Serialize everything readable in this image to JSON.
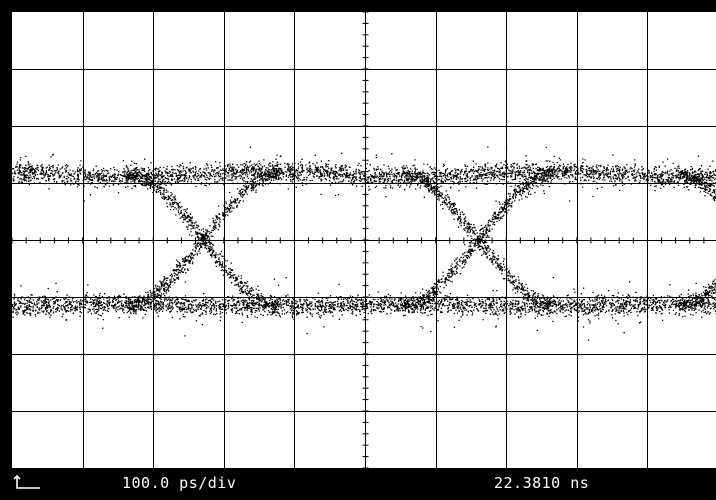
{
  "status_bar": {
    "timebase": "100.0 ps/div",
    "position": "22.3810 ns",
    "marker_icon": "ground-reference-marker-icon"
  },
  "colors": {
    "bezel": "#000000",
    "screen": "#ffffff",
    "trace": "#000000",
    "grid": "#000000"
  },
  "chart_data": {
    "type": "eye-diagram",
    "title": "",
    "xlabel": "",
    "ylabel": "",
    "grid": "on",
    "divisions": {
      "x": 10,
      "y": 8
    },
    "x_unit_per_div": "100.0 ps",
    "xlim_div": [
      0,
      10
    ],
    "ylim_div": [
      0,
      8
    ],
    "levels_div": {
      "high": 5.15,
      "low": 2.85,
      "band_thickness": 0.45
    },
    "crossings_div": [
      {
        "x": 2.7,
        "y": 3.7
      },
      {
        "x": 6.6,
        "y": 3.7
      }
    ],
    "eye_period_div": 3.9
  }
}
